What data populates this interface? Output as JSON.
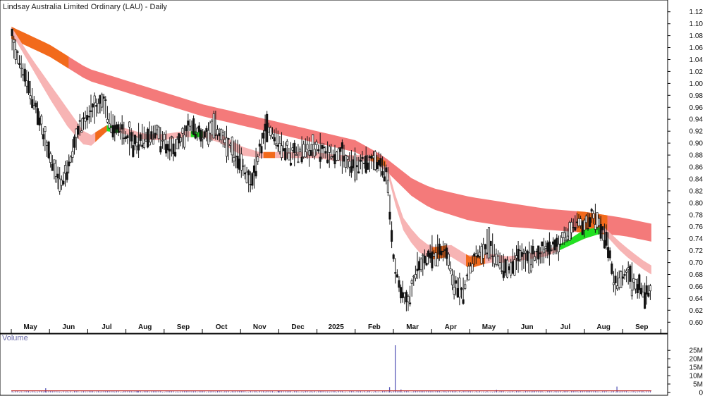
{
  "chart_data": [
    {
      "type": "candlestick-bar",
      "title": "Lindsay Australia Limited Ordinary (LAU) - Daily",
      "y_ticks": [
        "1.12",
        "1.10",
        "1.08",
        "1.06",
        "1.04",
        "1.02",
        "1.00",
        "0.98",
        "0.96",
        "0.94",
        "0.92",
        "0.90",
        "0.88",
        "0.86",
        "0.84",
        "0.82",
        "0.80",
        "0.78",
        "0.76",
        "0.74",
        "0.72",
        "0.70",
        "0.68",
        "0.66",
        "0.64",
        "0.62",
        "0.60"
      ],
      "ylim": [
        0.585,
        1.135
      ],
      "x_labels": [
        "May",
        "Jun",
        "Jul",
        "Aug",
        "Sep",
        "Oct",
        "Nov",
        "Dec",
        "2025",
        "Feb",
        "Mar",
        "Apr",
        "May",
        "Jun",
        "Jul",
        "Aug",
        "Sep"
      ],
      "x_label_positions": [
        0.5,
        1.5,
        2.5,
        3.5,
        4.5,
        5.5,
        6.5,
        7.5,
        8.5,
        9.5,
        10.5,
        11.5,
        12.5,
        13.5,
        14.5,
        15.5,
        16.5
      ],
      "x_range": [
        0,
        17
      ],
      "price_path": [
        [
          0.0,
          1.08
        ],
        [
          0.3,
          1.02
        ],
        [
          0.6,
          0.97
        ],
        [
          0.9,
          0.9
        ],
        [
          1.1,
          0.86
        ],
        [
          1.3,
          0.83
        ],
        [
          1.5,
          0.86
        ],
        [
          1.8,
          0.93
        ],
        [
          2.1,
          0.95
        ],
        [
          2.4,
          0.97
        ],
        [
          2.6,
          0.93
        ],
        [
          2.9,
          0.92
        ],
        [
          3.2,
          0.9
        ],
        [
          3.5,
          0.91
        ],
        [
          3.8,
          0.92
        ],
        [
          4.1,
          0.89
        ],
        [
          4.4,
          0.9
        ],
        [
          4.7,
          0.93
        ],
        [
          5.0,
          0.91
        ],
        [
          5.3,
          0.93
        ],
        [
          5.6,
          0.9
        ],
        [
          6.0,
          0.87
        ],
        [
          6.3,
          0.83
        ],
        [
          6.5,
          0.89
        ],
        [
          6.7,
          0.93
        ],
        [
          7.0,
          0.9
        ],
        [
          7.3,
          0.88
        ],
        [
          7.6,
          0.89
        ],
        [
          8.0,
          0.89
        ],
        [
          8.5,
          0.88
        ],
        [
          9.0,
          0.86
        ],
        [
          9.3,
          0.87
        ],
        [
          9.6,
          0.87
        ],
        [
          9.85,
          0.84
        ],
        [
          10.0,
          0.71
        ],
        [
          10.2,
          0.65
        ],
        [
          10.4,
          0.63
        ],
        [
          10.6,
          0.69
        ],
        [
          10.9,
          0.71
        ],
        [
          11.2,
          0.72
        ],
        [
          11.4,
          0.72
        ],
        [
          11.6,
          0.66
        ],
        [
          11.8,
          0.65
        ],
        [
          12.1,
          0.71
        ],
        [
          12.5,
          0.73
        ],
        [
          12.8,
          0.7
        ],
        [
          13.0,
          0.69
        ],
        [
          13.3,
          0.71
        ],
        [
          13.6,
          0.71
        ],
        [
          14.0,
          0.72
        ],
        [
          14.3,
          0.73
        ],
        [
          14.6,
          0.75
        ],
        [
          14.8,
          0.77
        ],
        [
          15.0,
          0.76
        ],
        [
          15.2,
          0.78
        ],
        [
          15.5,
          0.75
        ],
        [
          15.65,
          0.72
        ],
        [
          15.8,
          0.66
        ],
        [
          16.1,
          0.68
        ],
        [
          16.4,
          0.66
        ],
        [
          16.6,
          0.65
        ],
        [
          16.75,
          0.65
        ]
      ],
      "ma_long_upper": [
        [
          0,
          1.095
        ],
        [
          1,
          1.065
        ],
        [
          2,
          1.025
        ],
        [
          3,
          1.005
        ],
        [
          4,
          0.985
        ],
        [
          5,
          0.965
        ],
        [
          6,
          0.95
        ],
        [
          7,
          0.935
        ],
        [
          8,
          0.92
        ],
        [
          9,
          0.905
        ],
        [
          9.7,
          0.88
        ],
        [
          10.5,
          0.84
        ],
        [
          11,
          0.825
        ],
        [
          12,
          0.81
        ],
        [
          13,
          0.8
        ],
        [
          14,
          0.79
        ],
        [
          15,
          0.785
        ],
        [
          16,
          0.775
        ],
        [
          16.75,
          0.765
        ]
      ],
      "ma_long_lower": [
        [
          0,
          1.075
        ],
        [
          1,
          1.045
        ],
        [
          2,
          1.005
        ],
        [
          3,
          0.985
        ],
        [
          4,
          0.965
        ],
        [
          5,
          0.945
        ],
        [
          6,
          0.93
        ],
        [
          7,
          0.915
        ],
        [
          8,
          0.9
        ],
        [
          9,
          0.885
        ],
        [
          9.7,
          0.86
        ],
        [
          10.5,
          0.81
        ],
        [
          11,
          0.79
        ],
        [
          12,
          0.77
        ],
        [
          13,
          0.76
        ],
        [
          14,
          0.755
        ],
        [
          15,
          0.75
        ],
        [
          16,
          0.745
        ],
        [
          16.75,
          0.735
        ]
      ],
      "ma_short_upper": [
        [
          0,
          1.095
        ],
        [
          0.5,
          1.045
        ],
        [
          1,
          1.0
        ],
        [
          1.5,
          0.955
        ],
        [
          2,
          0.91
        ],
        [
          2.5,
          0.93
        ],
        [
          3,
          0.925
        ],
        [
          3.5,
          0.915
        ],
        [
          4,
          0.915
        ],
        [
          4.5,
          0.92
        ],
        [
          5,
          0.92
        ],
        [
          5.5,
          0.915
        ],
        [
          6,
          0.895
        ],
        [
          6.5,
          0.885
        ],
        [
          7,
          0.885
        ],
        [
          7.5,
          0.885
        ],
        [
          8,
          0.885
        ],
        [
          8.5,
          0.88
        ],
        [
          9,
          0.88
        ],
        [
          9.5,
          0.88
        ],
        [
          9.8,
          0.87
        ],
        [
          10.2,
          0.78
        ],
        [
          10.6,
          0.745
        ],
        [
          11,
          0.725
        ],
        [
          11.5,
          0.73
        ],
        [
          12,
          0.71
        ],
        [
          12.5,
          0.715
        ],
        [
          13,
          0.71
        ],
        [
          13.5,
          0.715
        ],
        [
          14,
          0.72
        ],
        [
          14.5,
          0.735
        ],
        [
          15,
          0.755
        ],
        [
          15.5,
          0.76
        ],
        [
          16,
          0.73
        ],
        [
          16.5,
          0.705
        ],
        [
          16.75,
          0.695
        ]
      ],
      "ma_short_lower": [
        [
          0,
          1.085
        ],
        [
          0.5,
          1.03
        ],
        [
          1,
          0.975
        ],
        [
          1.5,
          0.925
        ],
        [
          2,
          0.89
        ],
        [
          2.5,
          0.92
        ],
        [
          3,
          0.915
        ],
        [
          3.5,
          0.905
        ],
        [
          4,
          0.905
        ],
        [
          4.5,
          0.91
        ],
        [
          5,
          0.91
        ],
        [
          5.5,
          0.9
        ],
        [
          6,
          0.88
        ],
        [
          6.5,
          0.875
        ],
        [
          7,
          0.875
        ],
        [
          7.5,
          0.875
        ],
        [
          8,
          0.875
        ],
        [
          8.5,
          0.87
        ],
        [
          9,
          0.87
        ],
        [
          9.5,
          0.87
        ],
        [
          9.8,
          0.86
        ],
        [
          10.2,
          0.76
        ],
        [
          10.6,
          0.72
        ],
        [
          11,
          0.705
        ],
        [
          11.5,
          0.71
        ],
        [
          12,
          0.69
        ],
        [
          12.5,
          0.7
        ],
        [
          13,
          0.7
        ],
        [
          13.5,
          0.705
        ],
        [
          14,
          0.71
        ],
        [
          14.5,
          0.725
        ],
        [
          15,
          0.74
        ],
        [
          15.5,
          0.75
        ],
        [
          16,
          0.715
        ],
        [
          16.5,
          0.69
        ],
        [
          16.75,
          0.68
        ]
      ],
      "colors": {
        "price_bar": "#111111",
        "long_ribbon": "#f47a7a",
        "long_ribbon_cross": "#f26a1b",
        "short_ribbon_bear": "#f7b4b4",
        "short_ribbon_bull": "#22e022",
        "short_ribbon_cross": "#f26a1b"
      }
    },
    {
      "type": "bar",
      "title": "Volume",
      "y_ticks": [
        "25M",
        "20M",
        "15M",
        "10M",
        "5M",
        "0"
      ],
      "ylim": [
        0,
        28
      ],
      "baseline_volume_m": 0.8,
      "spikes": [
        [
          0.9,
          2.5
        ],
        [
          10.05,
          28
        ],
        [
          9.9,
          3.2
        ],
        [
          10.2,
          1.8
        ],
        [
          15.85,
          3.5
        ],
        [
          12.7,
          1.6
        ],
        [
          7.0,
          1.2
        ],
        [
          3.3,
          1.0
        ]
      ],
      "colors": {
        "volume": "#5a5ab8",
        "volume_ma": "#c03030"
      }
    }
  ]
}
